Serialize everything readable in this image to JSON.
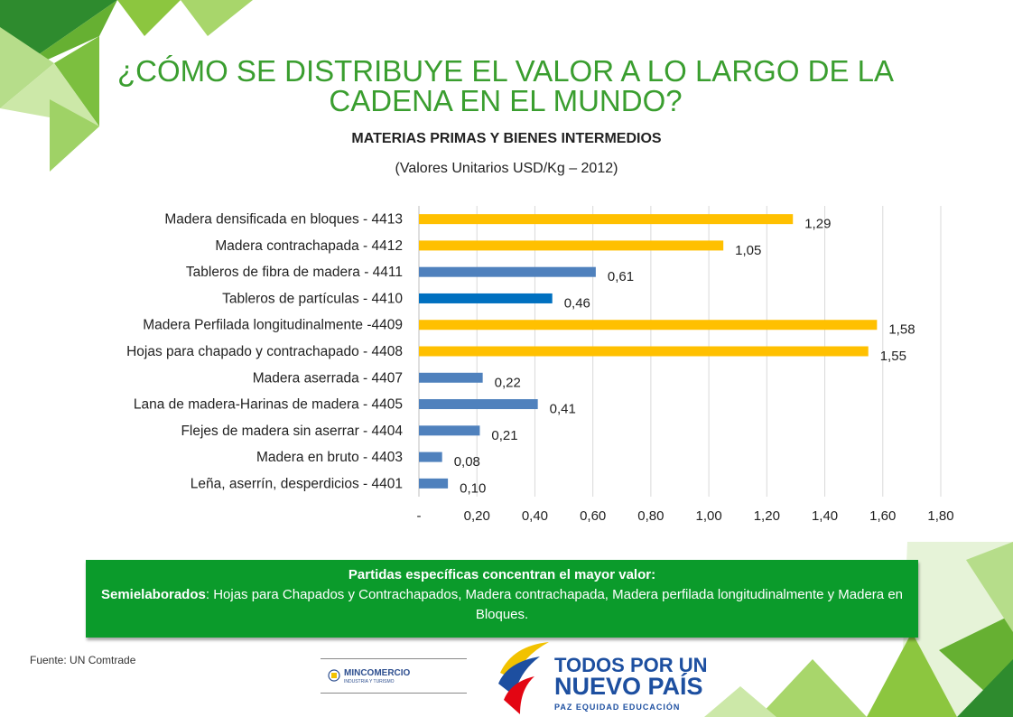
{
  "header": {
    "title": "¿CÓMO SE DISTRIBUYE EL VALOR A LO LARGO DE LA CADENA EN EL MUNDO?",
    "subtitle": "MATERIAS PRIMAS Y BIENES INTERMEDIOS",
    "units": "(Valores Unitarios USD/Kg – 2012)"
  },
  "chart_data": {
    "type": "bar",
    "orientation": "horizontal",
    "categories": [
      "Madera densificada en bloques - 4413",
      "Madera contrachapada - 4412",
      "Tableros de fibra de madera - 4411",
      "Tableros de partículas - 4410",
      "Madera Perfilada longitudinalmente -4409",
      "Hojas para chapado y contrachapado - 4408",
      "Madera aserrada - 4407",
      "Lana de madera-Harinas de madera - 4405",
      "Flejes de madera sin aserrar - 4404",
      "Madera en bruto - 4403",
      "Leña, aserrín, desperdicios - 4401"
    ],
    "values": [
      1.29,
      1.05,
      0.61,
      0.46,
      1.58,
      1.55,
      0.22,
      0.41,
      0.21,
      0.08,
      0.1
    ],
    "value_labels": [
      "1,29",
      "1,05",
      "0,61",
      "0,46",
      "1,58",
      "1,55",
      "0,22",
      "0,41",
      "0,21",
      "0,08",
      "0,10"
    ],
    "bar_colors": [
      "#ffc000",
      "#ffc000",
      "#4f81bd",
      "#0070c0",
      "#ffc000",
      "#ffc000",
      "#4f81bd",
      "#4f81bd",
      "#4f81bd",
      "#4f81bd",
      "#4f81bd"
    ],
    "xlim": [
      0,
      1.8
    ],
    "xticks": [
      0,
      0.2,
      0.4,
      0.6,
      0.8,
      1.0,
      1.2,
      1.4,
      1.6,
      1.8
    ],
    "xtick_labels": [
      "-",
      "0,20",
      "0,40",
      "0,60",
      "0,80",
      "1,00",
      "1,20",
      "1,40",
      "1,60",
      "1,80"
    ],
    "grid": true
  },
  "note": {
    "line1": "Partidas específicas concentran el mayor valor:",
    "bold_lead": "Semielaborados",
    "body": ": Hojas para Chapados y Contrachapados, Madera contrachapada, Madera perfilada longitudinalmente y Madera en Bloques."
  },
  "footer": {
    "source": "Fuente: UN Comtrade",
    "mincomercio_name": "MINCOMERCIO",
    "mincomercio_sub": "INDUSTRIA Y TURISMO",
    "slogan_line1": "TODOS POR UN",
    "slogan_line2": "NUEVO PAÍS",
    "slogan_line3": "PAZ  EQUIDAD  EDUCACIÓN"
  },
  "colors": {
    "title": "#3a9e2f",
    "note_bg": "#0b9b2b",
    "gold": "#ffc000",
    "blue": "#4f81bd",
    "dark_blue": "#0070c0"
  }
}
